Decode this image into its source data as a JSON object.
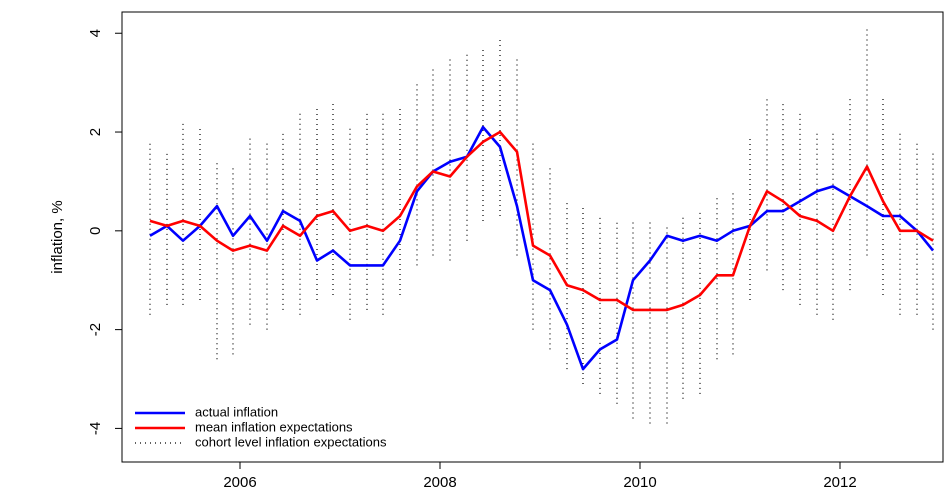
{
  "chart_data": {
    "type": "line",
    "ylabel": "inflation, %",
    "x": [
      2005.1,
      2005.27,
      2005.43,
      2005.6,
      2005.77,
      2005.93,
      2006.1,
      2006.27,
      2006.43,
      2006.6,
      2006.77,
      2006.93,
      2007.1,
      2007.27,
      2007.43,
      2007.6,
      2007.77,
      2007.93,
      2008.1,
      2008.27,
      2008.43,
      2008.6,
      2008.77,
      2008.93,
      2009.1,
      2009.27,
      2009.43,
      2009.6,
      2009.77,
      2009.93,
      2010.1,
      2010.27,
      2010.43,
      2010.6,
      2010.77,
      2010.93,
      2011.1,
      2011.27,
      2011.43,
      2011.6,
      2011.77,
      2011.93,
      2012.1,
      2012.27,
      2012.43,
      2012.6,
      2012.77,
      2012.93
    ],
    "series": [
      {
        "name": "actual inflation",
        "color": "#0000ff",
        "values": [
          -0.1,
          0.1,
          -0.2,
          0.1,
          0.5,
          -0.1,
          0.3,
          -0.2,
          0.4,
          0.2,
          -0.6,
          -0.4,
          -0.7,
          -0.7,
          -0.7,
          -0.2,
          0.8,
          1.2,
          1.4,
          1.5,
          2.1,
          1.7,
          0.5,
          -1.0,
          -1.2,
          -1.9,
          -2.8,
          -2.4,
          -2.2,
          -1.0,
          -0.6,
          -0.1,
          -0.2,
          -0.1,
          -0.2,
          0.0,
          0.1,
          0.4,
          0.4,
          0.6,
          0.8,
          0.9,
          0.7,
          0.5,
          0.3,
          0.3,
          0.0,
          -0.4
        ]
      },
      {
        "name": "mean inflation expectations",
        "color": "#ff0000",
        "values": [
          0.2,
          0.1,
          0.2,
          0.1,
          -0.2,
          -0.4,
          -0.3,
          -0.4,
          0.1,
          -0.1,
          0.3,
          0.4,
          0.0,
          0.1,
          0.0,
          0.3,
          0.9,
          1.2,
          1.1,
          1.5,
          1.8,
          2.0,
          1.6,
          -0.3,
          -0.5,
          -1.1,
          -1.2,
          -1.4,
          -1.4,
          -1.6,
          -1.6,
          -1.6,
          -1.5,
          -1.3,
          -0.9,
          -0.9,
          0.1,
          0.8,
          0.6,
          0.3,
          0.2,
          0.0,
          0.7,
          1.3,
          0.6,
          0.0,
          0.0,
          -0.2
        ]
      },
      {
        "name": "cohort level inflation expectations",
        "color": "#000000",
        "low": [
          -1.7,
          -1.5,
          -1.5,
          -1.4,
          -2.6,
          -2.5,
          -1.9,
          -2.0,
          -1.6,
          -1.7,
          -1.4,
          -1.3,
          -1.8,
          -1.6,
          -1.7,
          -1.3,
          -0.7,
          -0.5,
          -0.6,
          -0.2,
          0.2,
          0.3,
          -0.5,
          -2.0,
          -2.4,
          -2.8,
          -3.1,
          -3.3,
          -3.5,
          -3.8,
          -3.9,
          -3.9,
          -3.4,
          -3.3,
          -2.6,
          -2.5,
          -1.4,
          -0.8,
          -1.2,
          -1.5,
          -1.7,
          -1.8,
          -1.2,
          -0.5,
          -1.3,
          -1.7,
          -1.7,
          -2.0
        ],
        "high": [
          1.8,
          1.6,
          2.2,
          2.1,
          1.4,
          1.3,
          1.9,
          1.8,
          2.0,
          2.4,
          2.5,
          2.6,
          2.1,
          2.4,
          2.4,
          2.5,
          3.0,
          3.3,
          3.5,
          3.6,
          3.7,
          3.9,
          3.5,
          1.8,
          1.3,
          0.6,
          0.5,
          0.3,
          0.2,
          0.2,
          0.2,
          0.1,
          0.3,
          0.4,
          0.7,
          0.8,
          1.9,
          2.7,
          2.6,
          2.4,
          2.0,
          2.0,
          2.7,
          4.1,
          2.7,
          2.0,
          1.8,
          1.6
        ]
      }
    ],
    "xlim": [
      2004.82,
      2013.03
    ],
    "xticks": [
      2006,
      2008,
      2010,
      2012
    ],
    "ylim": [
      -4.68,
      4.43
    ],
    "yticks": [
      -4,
      -2,
      0,
      2,
      4
    ],
    "legend": "bottom-left"
  }
}
